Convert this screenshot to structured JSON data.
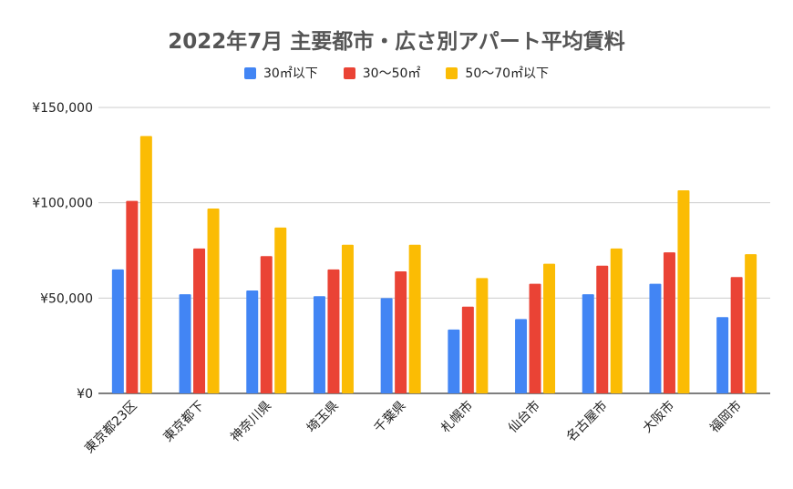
{
  "chart_data": {
    "type": "bar",
    "title": "2022年7月 主要都市・広さ別アパート平均賃料",
    "categories": [
      "東京都23区",
      "東京都下",
      "神奈川県",
      "埼玉県",
      "千葉県",
      "札幌市",
      "仙台市",
      "名古屋市",
      "大阪市",
      "福岡市"
    ],
    "series": [
      {
        "name": "30㎡以下",
        "color": "#4285F4",
        "values": [
          65000,
          52000,
          54000,
          51000,
          50000,
          33500,
          39000,
          52000,
          57500,
          40000
        ]
      },
      {
        "name": "30〜50㎡",
        "color": "#EA4335",
        "values": [
          101000,
          76000,
          72000,
          65000,
          64000,
          45500,
          57500,
          67000,
          74000,
          61000
        ]
      },
      {
        "name": "50〜70㎡以下",
        "color": "#FBBC04",
        "values": [
          135000,
          97000,
          87000,
          78000,
          78000,
          60500,
          68000,
          76000,
          106500,
          73000
        ]
      }
    ],
    "ylim": [
      0,
      150000
    ],
    "y_ticks": [
      0,
      50000,
      100000,
      150000
    ],
    "y_tick_labels": [
      "¥0",
      "¥50,000",
      "¥100,000",
      "¥150,000"
    ],
    "grid": true,
    "legend_position": "top"
  }
}
